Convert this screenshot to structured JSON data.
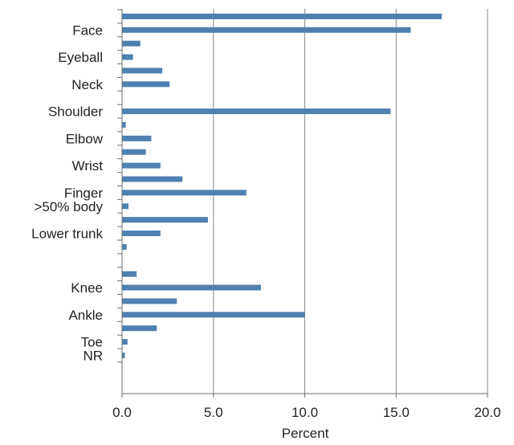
{
  "chart_data": {
    "type": "bar",
    "orientation": "horizontal",
    "title": "",
    "xlabel": "Percent",
    "ylabel": "",
    "xlim": [
      0,
      20
    ],
    "x_ticks": [
      "0.0",
      "5.0",
      "10.0",
      "15.0",
      "20.0"
    ],
    "grid": "vertical",
    "legend": "none",
    "bar_color": "#4f81b0",
    "labeled_categories": [
      "Face",
      "Eyeball",
      "Neck",
      "Shoulder",
      "Elbow",
      "Wrist",
      "Finger",
      ">50% body",
      "Lower trunk",
      "Knee",
      "Ankle",
      "Toe",
      "NR"
    ],
    "bars": [
      {
        "label": "",
        "value": 17.5
      },
      {
        "label": "Face",
        "value": 15.8
      },
      {
        "label": "",
        "value": 1.0
      },
      {
        "label": "Eyeball",
        "value": 0.6
      },
      {
        "label": "",
        "value": 2.2
      },
      {
        "label": "Neck",
        "value": 2.6
      },
      {
        "label": "",
        "value": 0.0
      },
      {
        "label": "Shoulder",
        "value": 14.7
      },
      {
        "label": "",
        "value": 0.2
      },
      {
        "label": "Elbow",
        "value": 1.6
      },
      {
        "label": "",
        "value": 1.3
      },
      {
        "label": "Wrist",
        "value": 2.1
      },
      {
        "label": "",
        "value": 3.3
      },
      {
        "label": "Finger",
        "value": 6.8
      },
      {
        "label": ">50% body",
        "value": 0.35
      },
      {
        "label": "",
        "value": 4.7
      },
      {
        "label": "Lower trunk",
        "value": 2.1
      },
      {
        "label": "",
        "value": 0.25
      },
      {
        "label": "",
        "value": 0.0
      },
      {
        "label": "",
        "value": 0.8
      },
      {
        "label": "Knee",
        "value": 7.6
      },
      {
        "label": "",
        "value": 3.0
      },
      {
        "label": "Ankle",
        "value": 10.0
      },
      {
        "label": "",
        "value": 1.9
      },
      {
        "label": "Toe",
        "value": 0.3
      },
      {
        "label": "NR",
        "value": 0.15
      }
    ]
  }
}
